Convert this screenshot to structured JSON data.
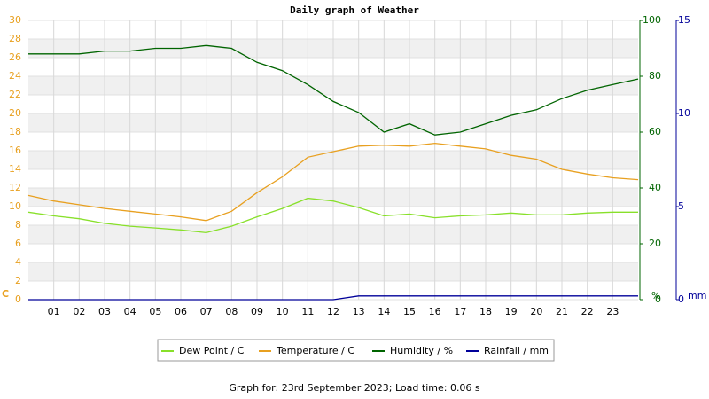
{
  "chart_data": {
    "type": "line",
    "title": "Daily graph of Weather",
    "footer": "Graph for: 23rd September 2023; Load time: 0.06 s",
    "x": [
      0,
      1,
      2,
      3,
      4,
      5,
      6,
      7,
      8,
      9,
      10,
      11,
      12,
      13,
      14,
      15,
      16,
      17,
      18,
      19,
      20,
      21,
      22,
      23,
      24
    ],
    "xlim": [
      0,
      24
    ],
    "xticks": [
      {
        "value": 1,
        "label": "01"
      },
      {
        "value": 2,
        "label": "02"
      },
      {
        "value": 3,
        "label": "03"
      },
      {
        "value": 4,
        "label": "04"
      },
      {
        "value": 5,
        "label": "05"
      },
      {
        "value": 6,
        "label": "06"
      },
      {
        "value": 7,
        "label": "07"
      },
      {
        "value": 8,
        "label": "08"
      },
      {
        "value": 9,
        "label": "09"
      },
      {
        "value": 10,
        "label": "10"
      },
      {
        "value": 11,
        "label": "11"
      },
      {
        "value": 12,
        "label": "12"
      },
      {
        "value": 13,
        "label": "13"
      },
      {
        "value": 14,
        "label": "14"
      },
      {
        "value": 15,
        "label": "15"
      },
      {
        "value": 16,
        "label": "16"
      },
      {
        "value": 17,
        "label": "17"
      },
      {
        "value": 18,
        "label": "18"
      },
      {
        "value": 19,
        "label": "19"
      },
      {
        "value": 20,
        "label": "20"
      },
      {
        "value": 21,
        "label": "21"
      },
      {
        "value": 22,
        "label": "22"
      },
      {
        "value": 23,
        "label": "23"
      }
    ],
    "ylim": [
      0,
      30
    ],
    "yticks": [
      0,
      2,
      4,
      6,
      8,
      10,
      12,
      14,
      16,
      18,
      20,
      22,
      24,
      26,
      28,
      30
    ],
    "ylabel": "C",
    "y2lim": [
      0,
      100
    ],
    "y2ticks": [
      0,
      20,
      40,
      60,
      80,
      100
    ],
    "y2label": "%",
    "y3lim": [
      0,
      15
    ],
    "y3ticks": [
      0,
      5,
      10,
      15
    ],
    "y3label": "mm",
    "grid": true,
    "series": [
      {
        "name": "Dew Point / C",
        "color": "#88e02a",
        "axis": "y",
        "values": [
          9.4,
          9.0,
          8.7,
          8.2,
          7.9,
          7.7,
          7.5,
          7.2,
          7.9,
          8.9,
          9.8,
          10.9,
          10.6,
          9.9,
          9.0,
          9.2,
          8.8,
          9.0,
          9.1,
          9.3,
          9.1,
          9.1,
          9.3,
          9.4,
          9.4
        ]
      },
      {
        "name": "Temperature / C",
        "color": "#e8a020",
        "axis": "y",
        "values": [
          11.2,
          10.6,
          10.2,
          9.8,
          9.5,
          9.2,
          8.9,
          8.5,
          9.5,
          11.5,
          13.2,
          15.3,
          15.9,
          16.5,
          16.6,
          16.5,
          16.8,
          16.5,
          16.2,
          15.5,
          15.1,
          14.0,
          13.5,
          13.1,
          12.9
        ]
      },
      {
        "name": "Humidity / %",
        "color": "#006400",
        "axis": "y2",
        "values": [
          88,
          88,
          88,
          89,
          89,
          90,
          90,
          91,
          90,
          85,
          82,
          77,
          71,
          67,
          60,
          63,
          59,
          60,
          63,
          66,
          68,
          72,
          75,
          77,
          79
        ]
      },
      {
        "name": "Rainfall / mm",
        "color": "#000099",
        "axis": "y3",
        "values": [
          0,
          0,
          0,
          0,
          0,
          0,
          0,
          0,
          0,
          0,
          0,
          0,
          0,
          0.2,
          0.2,
          0.2,
          0.2,
          0.2,
          0.2,
          0.2,
          0.2,
          0.2,
          0.2,
          0.2,
          0.2
        ]
      }
    ]
  }
}
